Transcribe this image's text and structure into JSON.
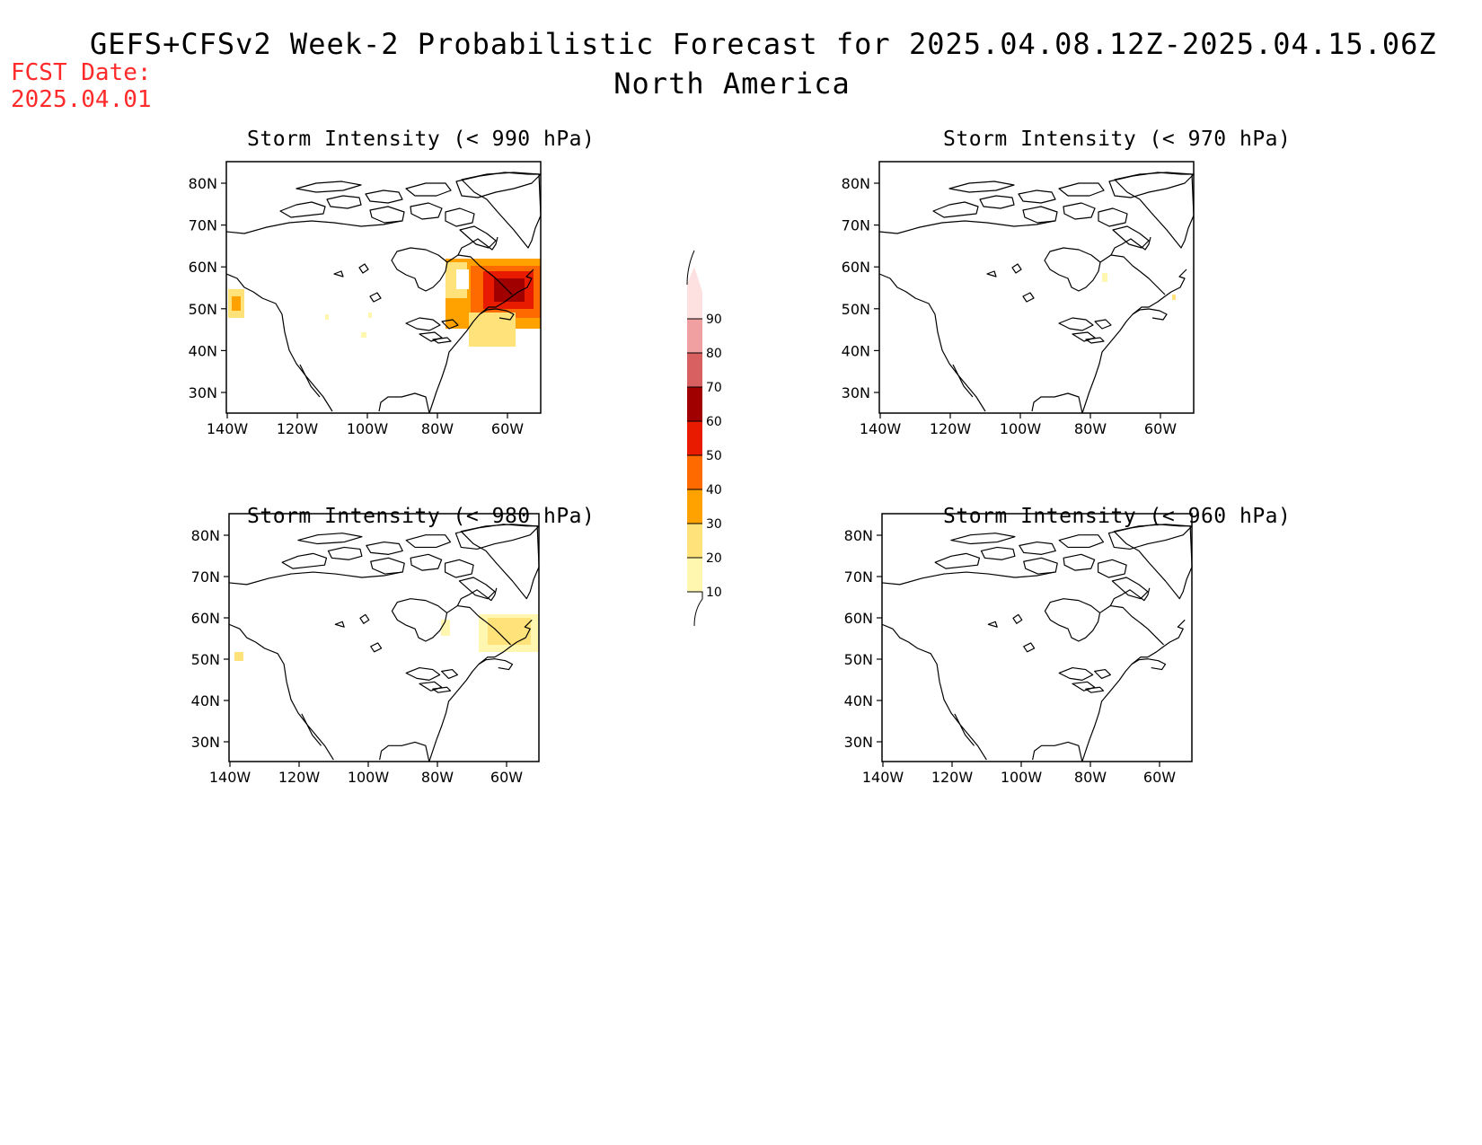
{
  "header": {
    "title": "GEFS+CFSv2 Week-2 Probabilistic Forecast for 2025.04.08.12Z-2025.04.15.06Z",
    "subtitle": "North America",
    "fcst_label": "FCST Date:",
    "fcst_date": "2025.04.01"
  },
  "panels": [
    {
      "title": "Storm Intensity (< 990 hPa)"
    },
    {
      "title": "Storm Intensity (< 970 hPa)"
    },
    {
      "title": "Storm Intensity (< 980 hPa)"
    },
    {
      "title": "Storm Intensity (< 960 hPa)"
    }
  ],
  "axes": {
    "lat_ticks": [
      "80N",
      "70N",
      "60N",
      "50N",
      "40N",
      "30N"
    ],
    "lon_ticks": [
      "140W",
      "120W",
      "100W",
      "80W",
      "60W"
    ]
  },
  "colorbar": {
    "levels": [
      "10",
      "20",
      "30",
      "40",
      "50",
      "60",
      "70",
      "80",
      "90"
    ],
    "colors": [
      "#fff7b0",
      "#ffe27a",
      "#ffa200",
      "#ff6a00",
      "#e81a00",
      "#a00000",
      "#d96060",
      "#f0a0a0",
      "#fde0e0"
    ]
  }
}
